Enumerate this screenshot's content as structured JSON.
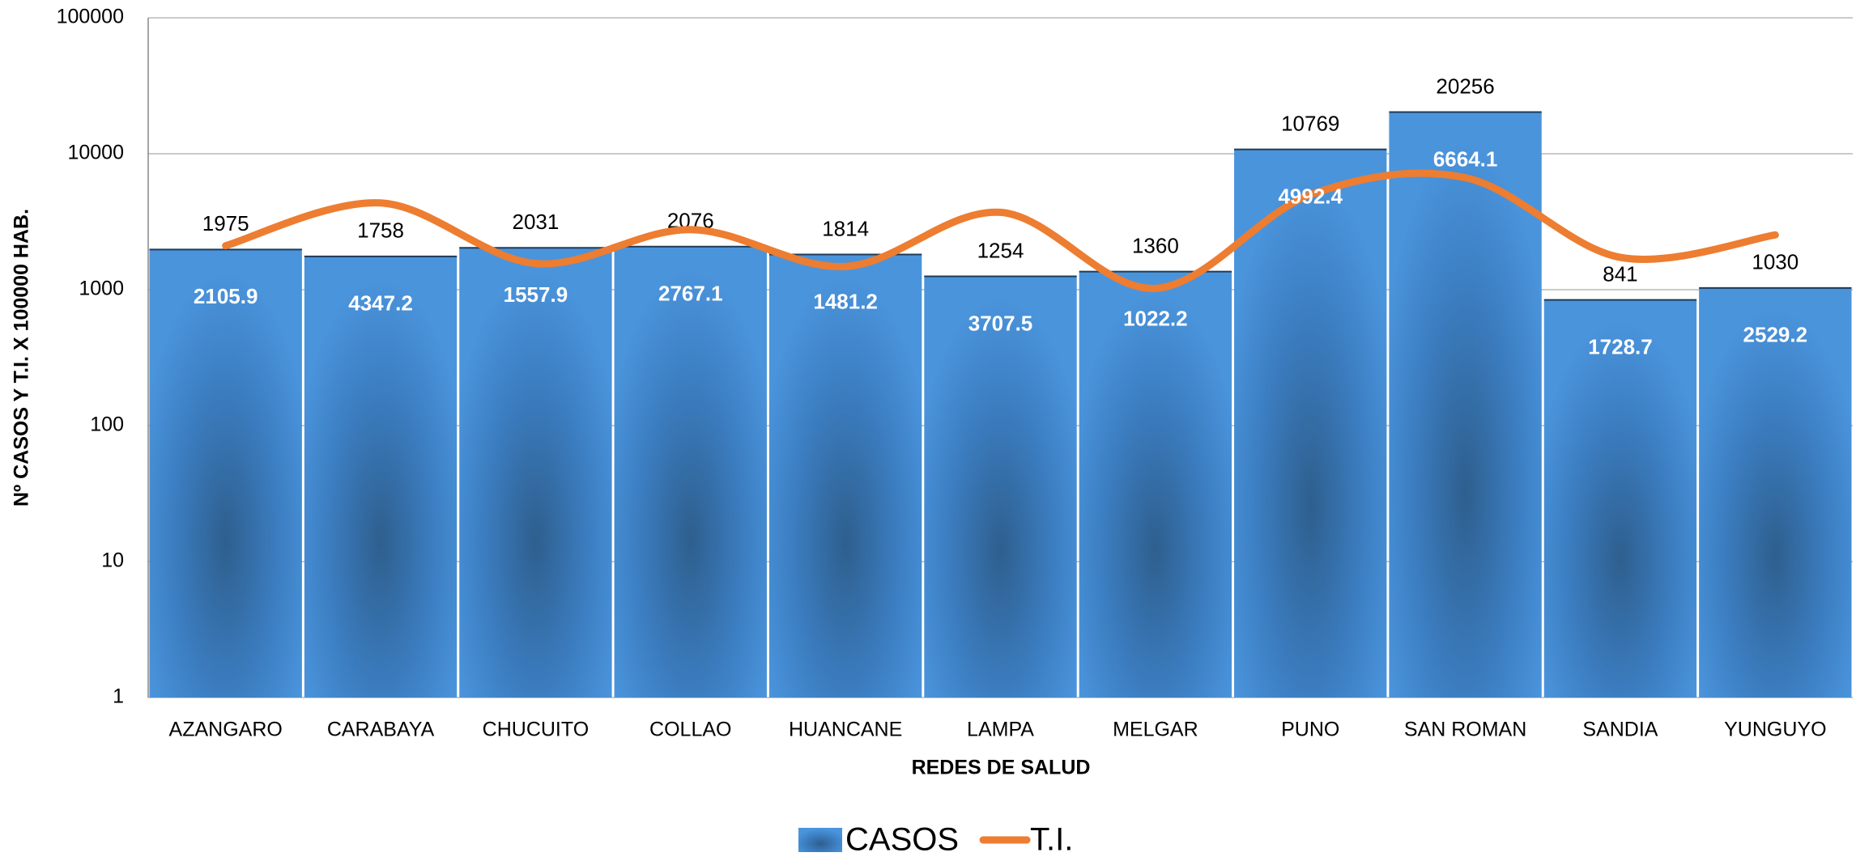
{
  "chart_data": {
    "type": "bar",
    "categories": [
      "AZANGARO",
      "CARABAYA",
      "CHUCUITO",
      "COLLAO",
      "HUANCANE",
      "LAMPA",
      "MELGAR",
      "PUNO",
      "SAN ROMAN",
      "SANDIA",
      "YUNGUYO"
    ],
    "series": [
      {
        "name": "CASOS",
        "type": "bar",
        "color": "#4a94dc",
        "values": [
          1975,
          1758,
          2031,
          2076,
          1814,
          1254,
          1360,
          10769,
          20256,
          841,
          1030
        ]
      },
      {
        "name": "T.I.",
        "type": "line",
        "color": "#ed7d31",
        "values": [
          2105.9,
          4347.2,
          1557.9,
          2767.1,
          1481.2,
          3707.5,
          1022.2,
          4992.4,
          6664.1,
          1728.7,
          2529.2
        ]
      }
    ],
    "ylim": [
      1,
      100000
    ],
    "yticks": [
      1,
      10,
      100,
      1000,
      10000,
      100000
    ],
    "log_scale": true,
    "grid": true,
    "x_label": "REDES DE SALUD",
    "y_label": "Nº CASOS Y T.I. X 100000 HAB.",
    "legend": "bottom"
  }
}
